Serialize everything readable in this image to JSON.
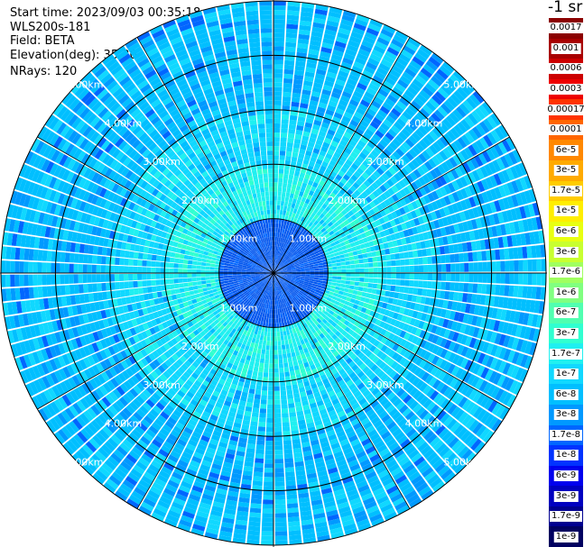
{
  "header": {
    "start_time": "Start time: 2023/09/03 00:35:18",
    "instrument": "WLS200s-181",
    "field": "Field: BETA",
    "elevation": "Elevation(deg): 35.30",
    "nrays": "NRays: 120"
  },
  "chart_data": {
    "type": "heatmap",
    "projection": "polar-ppi",
    "field": "BETA",
    "n_rays": 120,
    "range_max_km": 5.0,
    "range_rings_km": [
      1,
      2,
      3,
      4,
      5
    ],
    "range_ring_labels": [
      "1.00km",
      "2.00km",
      "3.00km",
      "4.00km",
      "5.00km"
    ],
    "spokes_deg": [
      0,
      30,
      60,
      90,
      120,
      150,
      180,
      210,
      240,
      270,
      300,
      330
    ],
    "colorbar": {
      "title": "-1 sr",
      "labels": [
        "0.0017",
        "0.001",
        "0.0006",
        "0.0003",
        "0.00017",
        "0.0001",
        "6e-5",
        "3e-5",
        "1.7e-5",
        "1e-5",
        "6e-6",
        "3e-6",
        "1.7e-6",
        "1e-6",
        "6e-7",
        "3e-7",
        "1.7e-7",
        "1e-7",
        "6e-8",
        "3e-8",
        "1.7e-8",
        "1e-8",
        "6e-9",
        "3e-9",
        "1.7e-9",
        "1e-9"
      ],
      "colors": [
        "#8b0000",
        "#a80000",
        "#cc0000",
        "#ee0000",
        "#ff3300",
        "#ff6600",
        "#ff8800",
        "#ffaa00",
        "#ffcc00",
        "#ffee00",
        "#e8ff10",
        "#c8ff30",
        "#a0ff60",
        "#80ff80",
        "#50ffb0",
        "#30ffd0",
        "#20f0f0",
        "#10d8ff",
        "#00bfff",
        "#0099ff",
        "#0066ff",
        "#0033ff",
        "#0000ee",
        "#0000c0",
        "#000090",
        "#000060"
      ]
    },
    "dominant_range_bands": [
      {
        "range_km": [
          0,
          1
        ],
        "value": "1e-8"
      },
      {
        "range_km": [
          1,
          2
        ],
        "value": "1.7e-7"
      },
      {
        "range_km": [
          2,
          3
        ],
        "value": "1e-7"
      },
      {
        "range_km": [
          3,
          5
        ],
        "value": "6e-8"
      }
    ]
  }
}
